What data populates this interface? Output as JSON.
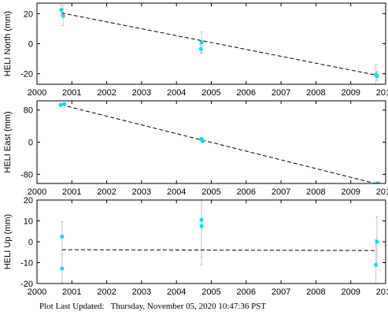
{
  "chart_data": [
    {
      "type": "scatter",
      "ylabel": "HELI North (mm)",
      "xlim": [
        2000,
        2010
      ],
      "ylim": [
        -27,
        27
      ],
      "xticks": [
        "2000",
        "2001",
        "2002",
        "2003",
        "2004",
        "2005",
        "2006",
        "2007",
        "2008",
        "2009",
        "2010"
      ],
      "xtick_values": [
        2000,
        2001,
        2002,
        2003,
        2004,
        2005,
        2006,
        2007,
        2008,
        2009,
        2010
      ],
      "yticks": [
        "20",
        "0",
        "-20"
      ],
      "ytick_values": [
        20,
        0,
        -20
      ],
      "show_xtick_labels": true,
      "points": [
        {
          "x": 2000.7,
          "y": 22.5,
          "err": 3.5
        },
        {
          "x": 2000.75,
          "y": 18.5,
          "err": 6.5
        },
        {
          "x": 2004.72,
          "y": 1.0,
          "err": 7.0
        },
        {
          "x": 2004.7,
          "y": -3.5,
          "err": 3.0
        },
        {
          "x": 2009.72,
          "y": -20.5,
          "err": 6.5
        },
        {
          "x": 2009.75,
          "y": -21.5,
          "err": 3.0
        }
      ],
      "trend": {
        "x": [
          2000.7,
          2009.75
        ],
        "y": [
          20.5,
          -21.0
        ]
      }
    },
    {
      "type": "scatter",
      "ylabel": "HELI East (mm)",
      "xlim": [
        2000,
        2010
      ],
      "ylim": [
        -103,
        103
      ],
      "xticks": [
        "2000",
        "2001",
        "2002",
        "2003",
        "2004",
        "2005",
        "2006",
        "2007",
        "2008",
        "2009",
        "2010"
      ],
      "xtick_values": [
        2000,
        2001,
        2002,
        2003,
        2004,
        2005,
        2006,
        2007,
        2008,
        2009,
        2010
      ],
      "yticks": [
        "80",
        "0",
        "-80"
      ],
      "ytick_values": [
        80,
        0,
        -80
      ],
      "show_xtick_labels": true,
      "points": [
        {
          "x": 2000.68,
          "y": 93,
          "err": 2.5
        },
        {
          "x": 2000.78,
          "y": 95,
          "err": 2.5
        },
        {
          "x": 2004.72,
          "y": 8,
          "err": 3
        },
        {
          "x": 2004.75,
          "y": 3,
          "err": 3
        },
        {
          "x": 2009.72,
          "y": -104,
          "err": 2.5
        },
        {
          "x": 2009.78,
          "y": -103,
          "err": 2.5
        }
      ],
      "trend": {
        "x": [
          2000.7,
          2009.75
        ],
        "y": [
          93,
          -104
        ]
      }
    },
    {
      "type": "scatter",
      "ylabel": "HELI Up (mm)",
      "xlim": [
        2000,
        2010
      ],
      "ylim": [
        -20,
        20
      ],
      "xticks": [
        "2000",
        "2001",
        "2002",
        "2003",
        "2004",
        "2005",
        "2006",
        "2007",
        "2008",
        "2009",
        "2010"
      ],
      "xtick_values": [
        2000,
        2001,
        2002,
        2003,
        2004,
        2005,
        2006,
        2007,
        2008,
        2009,
        2010
      ],
      "yticks": [
        "20",
        "10",
        "0",
        "-10",
        "-20"
      ],
      "ytick_values": [
        20,
        10,
        0,
        -10,
        -20
      ],
      "show_xtick_labels": true,
      "points": [
        {
          "x": 2000.72,
          "y": 2.5,
          "err": 7.0
        },
        {
          "x": 2000.72,
          "y": -12.8,
          "err": 7.0
        },
        {
          "x": 2004.72,
          "y": 10.5,
          "err": 18.0
        },
        {
          "x": 2004.72,
          "y": 7.5,
          "err": 18.5
        },
        {
          "x": 2009.75,
          "y": 0.0,
          "err": 12.0
        },
        {
          "x": 2009.72,
          "y": -11.0,
          "err": 12.0
        }
      ],
      "trend": {
        "x": [
          2000.72,
          2009.75
        ],
        "y": [
          -3.8,
          -4.2
        ]
      }
    }
  ],
  "colors": {
    "point": "#19d8f0",
    "errorbar": "#c8c8c8",
    "trend": "#000000",
    "frame": "#000000"
  },
  "footer": {
    "label": "Plot Last Updated:",
    "value": "Thursday, November 05, 2020 10:47:36 PST"
  }
}
